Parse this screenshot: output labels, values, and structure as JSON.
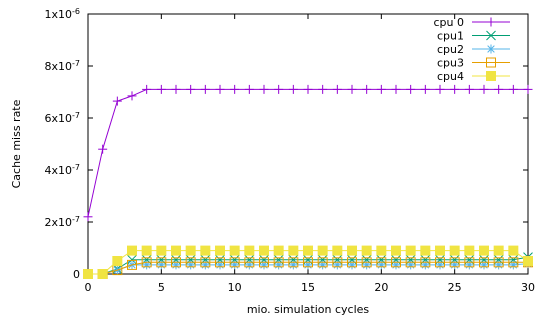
{
  "chart_data": {
    "type": "line",
    "title": "",
    "xlabel": "mio. simulation cycles",
    "ylabel": "Cache miss rate",
    "xlim": [
      0,
      30
    ],
    "ylim": [
      0,
      1e-06
    ],
    "x_ticks": [
      0,
      5,
      10,
      15,
      20,
      25,
      30
    ],
    "x_tick_labels": [
      "0",
      "5",
      "10",
      "15",
      "20",
      "25",
      "30"
    ],
    "y_ticks": [
      0,
      2e-07,
      4e-07,
      6e-07,
      8e-07,
      1e-06
    ],
    "y_tick_labels": [
      "0",
      "2x10-7",
      "4x10-7",
      "6x10-7",
      "8x10-7",
      "1x10-6"
    ],
    "grid": false,
    "legend_position": "top-right",
    "x": [
      0,
      1,
      2,
      3,
      4,
      5,
      6,
      7,
      8,
      9,
      10,
      11,
      12,
      13,
      14,
      15,
      16,
      17,
      18,
      19,
      20,
      21,
      22,
      23,
      24,
      25,
      26,
      27,
      28,
      29,
      30
    ],
    "series": [
      {
        "name": "cpu 0",
        "color": "#9400d3",
        "marker": "plus",
        "values": [
          2.2e-07,
          4.8e-07,
          6.65e-07,
          6.85e-07,
          7.1e-07,
          7.1e-07,
          7.1e-07,
          7.1e-07,
          7.1e-07,
          7.1e-07,
          7.1e-07,
          7.1e-07,
          7.1e-07,
          7.1e-07,
          7.1e-07,
          7.1e-07,
          7.1e-07,
          7.1e-07,
          7.1e-07,
          7.1e-07,
          7.1e-07,
          7.1e-07,
          7.1e-07,
          7.1e-07,
          7.1e-07,
          7.1e-07,
          7.1e-07,
          7.1e-07,
          7.1e-07,
          7.1e-07,
          7.1e-07
        ]
      },
      {
        "name": "cpu1",
        "color": "#009e73",
        "marker": "cross",
        "values": [
          0,
          0,
          2e-08,
          5.5e-08,
          5.5e-08,
          5.5e-08,
          5.5e-08,
          5.5e-08,
          5.5e-08,
          5.5e-08,
          5.5e-08,
          5.5e-08,
          5.5e-08,
          5.5e-08,
          5.5e-08,
          5.5e-08,
          5.5e-08,
          5.5e-08,
          5.5e-08,
          5.5e-08,
          5.5e-08,
          5.5e-08,
          5.5e-08,
          5.5e-08,
          5.5e-08,
          5.5e-08,
          5.5e-08,
          5.5e-08,
          5.5e-08,
          5.5e-08,
          6.5e-08
        ]
      },
      {
        "name": "cpu2",
        "color": "#56b4e9",
        "marker": "star",
        "values": [
          0,
          0,
          1.5e-08,
          3.5e-08,
          3.5e-08,
          3.5e-08,
          3.5e-08,
          3.5e-08,
          3.5e-08,
          3.5e-08,
          3.5e-08,
          3.5e-08,
          3.5e-08,
          3.5e-08,
          3.5e-08,
          3.5e-08,
          3.5e-08,
          3.5e-08,
          3.5e-08,
          3.5e-08,
          3.5e-08,
          3.5e-08,
          3.5e-08,
          3.5e-08,
          3.5e-08,
          3.5e-08,
          3.5e-08,
          3.5e-08,
          3.5e-08,
          3.5e-08,
          4e-08
        ]
      },
      {
        "name": "cpu3",
        "color": "#e69f00",
        "marker": "square-open",
        "values": [
          0,
          0,
          1.5e-08,
          3.5e-08,
          4.5e-08,
          4.5e-08,
          4.5e-08,
          4.5e-08,
          4.5e-08,
          4.5e-08,
          4.5e-08,
          4.5e-08,
          4.5e-08,
          4.5e-08,
          4.5e-08,
          4.5e-08,
          4.5e-08,
          4.5e-08,
          4.5e-08,
          4.5e-08,
          4.5e-08,
          4.5e-08,
          4.5e-08,
          4.5e-08,
          4.5e-08,
          4.5e-08,
          4.5e-08,
          4.5e-08,
          4.5e-08,
          4.5e-08,
          4.5e-08
        ]
      },
      {
        "name": "cpu4",
        "color": "#f0e442",
        "marker": "square-filled",
        "values": [
          0,
          0,
          5e-08,
          9e-08,
          9e-08,
          9e-08,
          9e-08,
          9e-08,
          9e-08,
          9e-08,
          9e-08,
          9e-08,
          9e-08,
          9e-08,
          9e-08,
          9e-08,
          9e-08,
          9e-08,
          9e-08,
          9e-08,
          9e-08,
          9e-08,
          9e-08,
          9e-08,
          9e-08,
          9e-08,
          9e-08,
          9e-08,
          9e-08,
          9e-08,
          5e-08
        ]
      }
    ]
  }
}
